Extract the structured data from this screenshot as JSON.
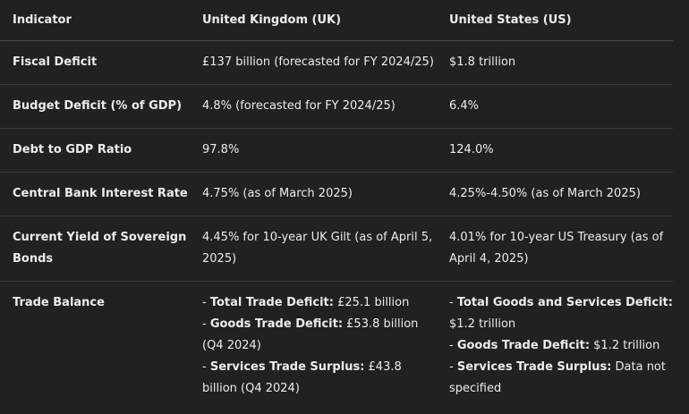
{
  "headers": [
    "Indicator",
    "United Kingdom (UK)",
    "United States (US)"
  ],
  "rows": [
    {
      "indicator": "Fiscal Deficit",
      "uk": "£137 billion (forecasted for FY 2024/25)",
      "us": "$1.8 trillion"
    },
    {
      "indicator": "Budget Deficit (% of GDP)",
      "uk": "4.8% (forecasted for FY 2024/25)",
      "us": "6.4%"
    },
    {
      "indicator": "Debt to GDP Ratio",
      "uk": "97.8%",
      "us": "124.0%"
    },
    {
      "indicator": "Central Bank Interest Rate",
      "uk": "4.75% (as of March 2025)",
      "us": "4.25%-4.50% (as of March 2025)"
    },
    {
      "indicator": "Current Yield of Sovereign Bonds",
      "uk": "4.45% for 10-year UK Gilt (as of April 5, 2025)",
      "us": "4.01% for 10-year US Treasury (as of April 4, 2025)"
    },
    {
      "indicator": "Trade Balance",
      "uk_items": [
        {
          "prefix": "- ",
          "label": "Total Trade Deficit:",
          "value": " £25.1 billion"
        },
        {
          "prefix": "- ",
          "label": "Goods Trade Deficit:",
          "value": " £53.8 billion (Q4 2024)"
        },
        {
          "prefix": "- ",
          "label": "Services Trade Surplus:",
          "value": " £43.8 billion (Q4 2024)"
        }
      ],
      "us_items": [
        {
          "prefix": "- ",
          "label": "Total Goods and Services Deficit:",
          "value": " $1.2 trillion"
        },
        {
          "prefix": "- ",
          "label": "Goods Trade Deficit:",
          "value": " $1.2 trillion"
        },
        {
          "prefix": "- ",
          "label": "Services Trade Surplus:",
          "value": " Data not specified"
        }
      ]
    }
  ]
}
